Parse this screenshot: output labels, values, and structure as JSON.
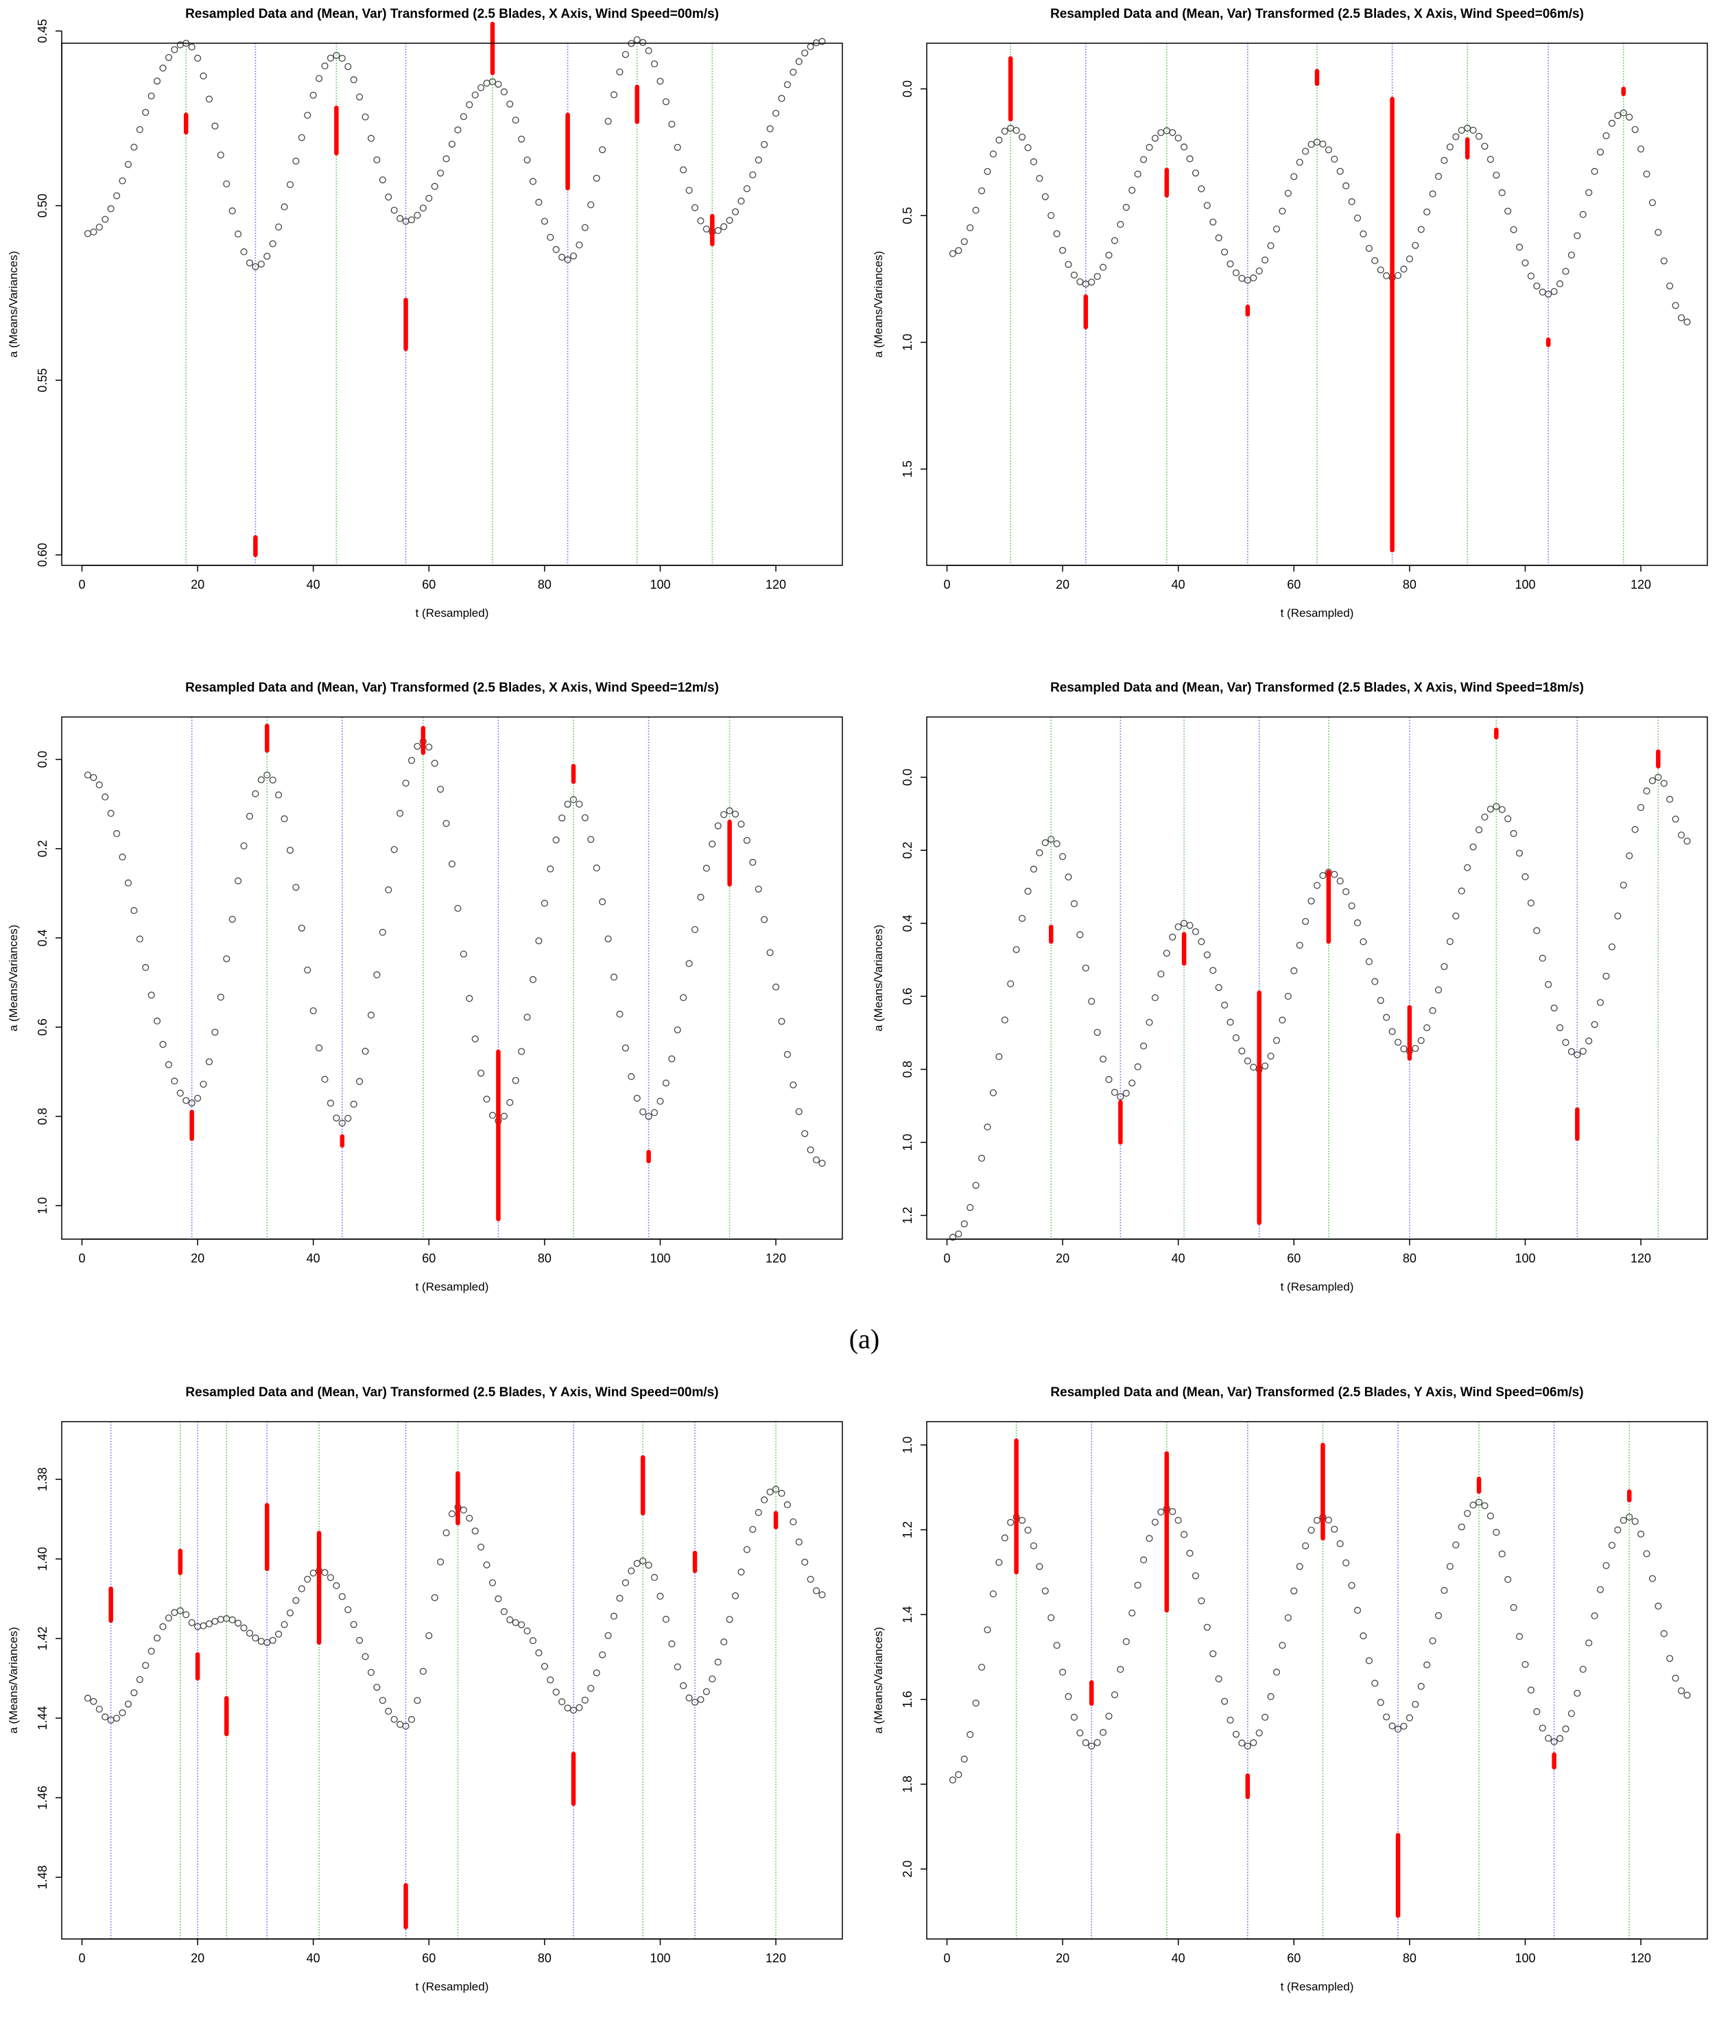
{
  "caption": "(a)",
  "colors": {
    "points": "#444444",
    "bars": "#ff0000",
    "vline_green": "#7ccf7c",
    "vline_blue": "#8a8aff"
  },
  "chart_data": [
    {
      "type": "scatter",
      "title": "Resampled Data and (Mean, Var) Transformed (2.5 Blades, X Axis, Wind Speed=00m/s)",
      "xlabel": "t (Resampled)",
      "ylabel": "a (Means/Variances)",
      "xlim": [
        -3.5,
        131.5
      ],
      "ylim": [
        0.4535,
        0.603
      ],
      "y_reversed": true,
      "xticks": [
        0,
        20,
        40,
        60,
        80,
        100,
        120
      ],
      "yticks": [
        0.45,
        0.5,
        0.55,
        0.6
      ],
      "ytick_labels": [
        "0.45",
        "0.50",
        "0.55",
        "0.60"
      ],
      "points": {
        "n": 128,
        "knots": [
          [
            1,
            0.508
          ],
          [
            18,
            0.4535
          ],
          [
            30,
            0.5175
          ],
          [
            44,
            0.457
          ],
          [
            56,
            0.5045
          ],
          [
            71,
            0.4645
          ],
          [
            84,
            0.5155
          ],
          [
            96,
            0.4525
          ],
          [
            109,
            0.5075
          ],
          [
            128,
            0.453
          ]
        ]
      },
      "vlines_green": [
        18,
        44,
        71,
        96,
        109
      ],
      "vlines_blue": [
        30,
        56,
        84
      ],
      "bars": [
        [
          18,
          0.474,
          0.479
        ],
        [
          30,
          0.595,
          0.6
        ],
        [
          44,
          0.472,
          0.485
        ],
        [
          56,
          0.527,
          0.541
        ],
        [
          71,
          0.448,
          0.462
        ],
        [
          84,
          0.474,
          0.495
        ],
        [
          96,
          0.466,
          0.476
        ],
        [
          109,
          0.503,
          0.511
        ]
      ]
    },
    {
      "type": "scatter",
      "title": "Resampled Data and (Mean, Var) Transformed (2.5 Blades, X Axis, Wind Speed=06m/s)",
      "xlabel": "t (Resampled)",
      "ylabel": "a (Means/Variances)",
      "xlim": [
        -3.5,
        131.5
      ],
      "ylim": [
        -0.18,
        1.88
      ],
      "y_reversed": true,
      "xticks": [
        0,
        20,
        40,
        60,
        80,
        100,
        120
      ],
      "yticks": [
        0.0,
        0.5,
        1.0,
        1.5
      ],
      "ytick_labels": [
        "0.0",
        "0.5",
        "1.0",
        "1.5"
      ],
      "points": {
        "n": 128,
        "knots": [
          [
            1,
            0.65
          ],
          [
            11,
            0.155
          ],
          [
            24,
            0.77
          ],
          [
            38,
            0.165
          ],
          [
            52,
            0.755
          ],
          [
            64,
            0.21
          ],
          [
            77,
            0.745
          ],
          [
            90,
            0.155
          ],
          [
            104,
            0.81
          ],
          [
            117,
            0.095
          ],
          [
            128,
            0.92
          ]
        ]
      },
      "vlines_green": [
        11,
        38,
        64,
        90,
        117
      ],
      "vlines_blue": [
        24,
        52,
        77,
        104
      ],
      "bars": [
        [
          11,
          -0.12,
          0.12
        ],
        [
          24,
          0.82,
          0.94
        ],
        [
          38,
          0.32,
          0.42
        ],
        [
          52,
          0.86,
          0.89
        ],
        [
          64,
          -0.07,
          -0.02
        ],
        [
          77,
          0.04,
          1.82
        ],
        [
          90,
          0.2,
          0.27
        ],
        [
          104,
          0.99,
          1.01
        ],
        [
          117,
          0.0,
          0.02
        ]
      ]
    },
    {
      "type": "scatter",
      "title": "Resampled Data and (Mean, Var) Transformed (2.5 Blades, X Axis, Wind Speed=12m/s)",
      "xlabel": "t (Resampled)",
      "ylabel": "a (Means/Variances)",
      "xlim": [
        -3.5,
        131.5
      ],
      "ylim": [
        -0.095,
        1.075
      ],
      "y_reversed": true,
      "xticks": [
        0,
        20,
        40,
        60,
        80,
        100,
        120
      ],
      "yticks": [
        0.0,
        0.2,
        0.4,
        0.6,
        0.8,
        1.0
      ],
      "ytick_labels": [
        "0.0",
        "0.2",
        "0.4",
        "0.6",
        "0.8",
        "1.0"
      ],
      "points": {
        "n": 128,
        "knots": [
          [
            1,
            0.035
          ],
          [
            19,
            0.77
          ],
          [
            32,
            0.035
          ],
          [
            45,
            0.815
          ],
          [
            59,
            -0.04
          ],
          [
            72,
            0.81
          ],
          [
            85,
            0.09
          ],
          [
            98,
            0.8
          ],
          [
            112,
            0.115
          ],
          [
            128,
            0.905
          ]
        ]
      },
      "vlines_green": [
        32,
        59,
        85,
        112
      ],
      "vlines_blue": [
        19,
        45,
        72,
        98
      ],
      "bars": [
        [
          19,
          0.79,
          0.85
        ],
        [
          32,
          -0.075,
          -0.02
        ],
        [
          45,
          0.845,
          0.865
        ],
        [
          59,
          -0.07,
          -0.015
        ],
        [
          72,
          0.655,
          1.03
        ],
        [
          85,
          0.015,
          0.05
        ],
        [
          98,
          0.88,
          0.9
        ],
        [
          112,
          0.14,
          0.28
        ]
      ]
    },
    {
      "type": "scatter",
      "title": "Resampled Data and (Mean, Var) Transformed (2.5 Blades, X Axis, Wind Speed=18m/s)",
      "xlabel": "t (Resampled)",
      "ylabel": "a (Means/Variances)",
      "xlim": [
        -3.5,
        131.5
      ],
      "ylim": [
        -0.165,
        1.265
      ],
      "y_reversed": true,
      "xticks": [
        0,
        20,
        40,
        60,
        80,
        100,
        120
      ],
      "yticks": [
        0.0,
        0.2,
        0.4,
        0.6,
        0.8,
        1.0,
        1.2
      ],
      "ytick_labels": [
        "0.0",
        "0.2",
        "0.4",
        "0.6",
        "0.8",
        "1.0",
        "1.2"
      ],
      "points": {
        "n": 128,
        "knots": [
          [
            1,
            1.26
          ],
          [
            18,
            0.17
          ],
          [
            30,
            0.875
          ],
          [
            41,
            0.4
          ],
          [
            54,
            0.8
          ],
          [
            66,
            0.26
          ],
          [
            80,
            0.75
          ],
          [
            95,
            0.08
          ],
          [
            109,
            0.76
          ],
          [
            123,
            0.0
          ],
          [
            128,
            0.175
          ]
        ]
      },
      "vlines_green": [
        18,
        41,
        66,
        95,
        123
      ],
      "vlines_blue": [
        30,
        54,
        80,
        109
      ],
      "bars": [
        [
          18,
          0.41,
          0.45
        ],
        [
          30,
          0.89,
          1.0
        ],
        [
          41,
          0.43,
          0.51
        ],
        [
          54,
          0.59,
          1.22
        ],
        [
          66,
          0.26,
          0.45
        ],
        [
          80,
          0.63,
          0.77
        ],
        [
          95,
          -0.13,
          -0.11
        ],
        [
          109,
          0.91,
          0.99
        ],
        [
          123,
          -0.07,
          -0.03
        ]
      ]
    },
    {
      "type": "scatter",
      "title": "Resampled Data and (Mean, Var) Transformed (2.5 Blades, Y Axis, Wind Speed=00m/s)",
      "xlabel": "t (Resampled)",
      "ylabel": "a (Means/Variances)",
      "xlim": [
        -3.5,
        131.5
      ],
      "ylim": [
        1.3655,
        1.4955
      ],
      "y_reversed": true,
      "xticks": [
        0,
        20,
        40,
        60,
        80,
        100,
        120
      ],
      "yticks": [
        1.38,
        1.4,
        1.42,
        1.44,
        1.46,
        1.48
      ],
      "ytick_labels": [
        "1.38",
        "1.40",
        "1.42",
        "1.44",
        "1.46",
        "1.48"
      ],
      "points": {
        "n": 128,
        "knots": [
          [
            1,
            1.435
          ],
          [
            5,
            1.4405
          ],
          [
            17,
            1.413
          ],
          [
            20,
            1.417
          ],
          [
            25,
            1.415
          ],
          [
            32,
            1.421
          ],
          [
            41,
            1.403
          ],
          [
            56,
            1.442
          ],
          [
            65,
            1.387
          ],
          [
            75,
            1.416
          ],
          [
            85,
            1.438
          ],
          [
            97,
            1.4005
          ],
          [
            106,
            1.436
          ],
          [
            120,
            1.3825
          ],
          [
            128,
            1.409
          ]
        ]
      },
      "vlines_green": [
        17,
        25,
        41,
        65,
        97,
        120
      ],
      "vlines_blue": [
        5,
        20,
        32,
        56,
        85,
        106
      ],
      "bars": [
        [
          5,
          1.4075,
          1.4155
        ],
        [
          17,
          1.398,
          1.4035
        ],
        [
          20,
          1.424,
          1.43
        ],
        [
          25,
          1.435,
          1.444
        ],
        [
          32,
          1.3865,
          1.4025
        ],
        [
          41,
          1.3935,
          1.421
        ],
        [
          56,
          1.482,
          1.4925
        ],
        [
          65,
          1.3785,
          1.391
        ],
        [
          85,
          1.449,
          1.4615
        ],
        [
          97,
          1.3745,
          1.3885
        ],
        [
          106,
          1.3985,
          1.403
        ],
        [
          120,
          1.3885,
          1.392
        ]
      ]
    },
    {
      "type": "scatter",
      "title": "Resampled Data and (Mean, Var) Transformed (2.5 Blades, Y Axis, Wind Speed=06m/s)",
      "xlabel": "t (Resampled)",
      "ylabel": "a (Means/Variances)",
      "xlim": [
        -3.5,
        131.5
      ],
      "ylim": [
        0.945,
        2.165
      ],
      "y_reversed": true,
      "xticks": [
        0,
        20,
        40,
        60,
        80,
        100,
        120
      ],
      "yticks": [
        1.0,
        1.2,
        1.4,
        1.6,
        1.8,
        2.0
      ],
      "ytick_labels": [
        "1.0",
        "1.2",
        "1.4",
        "1.6",
        "1.8",
        "2.0"
      ],
      "points": {
        "n": 128,
        "knots": [
          [
            1,
            1.79
          ],
          [
            12,
            1.17
          ],
          [
            25,
            1.71
          ],
          [
            38,
            1.15
          ],
          [
            52,
            1.71
          ],
          [
            65,
            1.17
          ],
          [
            78,
            1.67
          ],
          [
            92,
            1.135
          ],
          [
            105,
            1.7
          ],
          [
            118,
            1.17
          ],
          [
            128,
            1.59
          ]
        ]
      },
      "vlines_green": [
        12,
        38,
        65,
        92,
        118
      ],
      "vlines_blue": [
        25,
        52,
        78,
        105
      ],
      "bars": [
        [
          12,
          0.99,
          1.3
        ],
        [
          25,
          1.56,
          1.61
        ],
        [
          38,
          1.02,
          1.39
        ],
        [
          52,
          1.78,
          1.83
        ],
        [
          65,
          1.0,
          1.22
        ],
        [
          78,
          1.92,
          2.11
        ],
        [
          92,
          1.08,
          1.11
        ],
        [
          105,
          1.73,
          1.76
        ],
        [
          118,
          1.11,
          1.13
        ]
      ]
    }
  ]
}
